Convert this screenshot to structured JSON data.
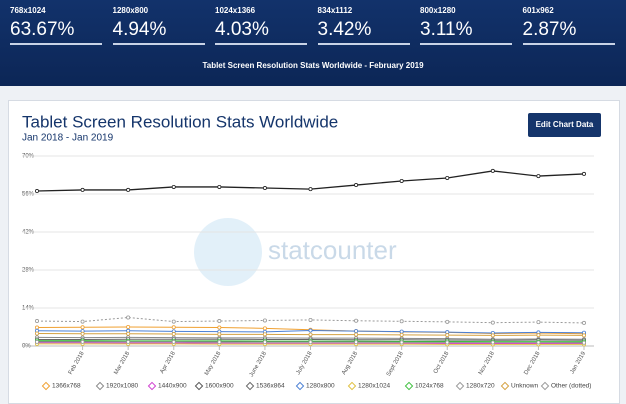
{
  "header": {
    "stats": [
      {
        "label": "768x1024",
        "value": "63.67%"
      },
      {
        "label": "1280x800",
        "value": "4.94%"
      },
      {
        "label": "1024x1366",
        "value": "4.03%"
      },
      {
        "label": "834x1112",
        "value": "3.42%"
      },
      {
        "label": "800x1280",
        "value": "3.11%"
      },
      {
        "label": "601x962",
        "value": "2.87%"
      }
    ],
    "subtitle": "Tablet Screen Resolution Stats Worldwide - February 2019"
  },
  "button": "Edit Chart Data",
  "watermark": "statcounter",
  "chart_data": {
    "type": "line",
    "title": "Tablet Screen Resolution Stats Worldwide",
    "subtitle": "Jan 2018 - Jan 2019",
    "categories": [
      null,
      "Feb 2018",
      "Mar 2018",
      "Apr 2018",
      "May 2018",
      "June 2018",
      "July 2018",
      "Aug 2018",
      "Sept 2018",
      "Oct 2018",
      "Nov 2018",
      "Dec 2018",
      "Jan 2019"
    ],
    "ylim": [
      0,
      70
    ],
    "yticks": [
      {
        "value": 0,
        "label": "0%"
      },
      {
        "value": 14,
        "label": "14%"
      },
      {
        "value": 28,
        "label": "28%"
      },
      {
        "value": 42,
        "label": "42%"
      },
      {
        "value": 56,
        "label": "56%"
      },
      {
        "value": 70,
        "label": "70%"
      }
    ],
    "grid": true,
    "legend": "bottom",
    "series": [
      {
        "color": "#222222",
        "values": [
          57.1,
          57.5,
          57.5,
          58.6,
          58.6,
          58.2,
          57.8,
          59.3,
          60.8,
          61.9,
          64.5,
          62.6,
          63.4
        ]
      },
      {
        "name": "1366x768",
        "color": "#f0a030",
        "values": [
          6.8,
          6.9,
          7.0,
          6.9,
          6.8,
          6.5,
          6.0,
          5.5,
          5.2,
          5.0,
          4.6,
          4.8,
          4.5
        ]
      },
      {
        "name": "1920x1080",
        "color": "#888888",
        "values": [
          3.2,
          3.1,
          3.2,
          3.1,
          3.0,
          3.0,
          2.9,
          2.9,
          2.8,
          2.7,
          2.5,
          2.6,
          2.5
        ]
      },
      {
        "name": "1440x900",
        "color": "#d040d0",
        "values": [
          1.2,
          1.2,
          1.1,
          1.1,
          1.1,
          1.0,
          1.0,
          1.0,
          1.0,
          0.9,
          0.9,
          0.9,
          0.9
        ]
      },
      {
        "name": "1600x900",
        "color": "#555555",
        "values": [
          1.8,
          1.8,
          1.7,
          1.7,
          1.7,
          1.6,
          1.6,
          1.6,
          1.5,
          1.5,
          1.4,
          1.4,
          1.4
        ]
      },
      {
        "name": "1536x864",
        "color": "#666666",
        "values": [
          2.4,
          2.4,
          2.5,
          2.5,
          2.5,
          2.4,
          2.4,
          2.3,
          2.3,
          2.2,
          2.1,
          2.2,
          2.1
        ]
      },
      {
        "name": "1280x800",
        "color": "#4a7fd4",
        "values": [
          5.6,
          5.5,
          5.6,
          5.4,
          5.3,
          5.2,
          5.7,
          5.5,
          5.3,
          5.1,
          4.8,
          5.0,
          4.9
        ]
      },
      {
        "name": "1280x1024",
        "color": "#e0c040",
        "values": [
          0.8,
          0.8,
          0.8,
          0.8,
          0.7,
          0.7,
          0.7,
          0.7,
          0.7,
          0.6,
          0.6,
          0.6,
          0.6
        ]
      },
      {
        "name": "1024x768",
        "color": "#40c040",
        "values": [
          2.0,
          2.0,
          1.9,
          1.9,
          1.9,
          1.8,
          1.8,
          1.8,
          1.7,
          1.7,
          1.6,
          1.6,
          1.6
        ]
      },
      {
        "name": "1280x720",
        "color": "#999999",
        "values": [
          1.5,
          1.5,
          1.5,
          1.5,
          1.4,
          1.4,
          1.4,
          1.4,
          1.3,
          1.3,
          1.3,
          1.3,
          1.2
        ]
      },
      {
        "name": "Unknown",
        "color": "#d4a040",
        "values": [
          4.6,
          4.5,
          4.5,
          4.4,
          4.3,
          4.3,
          4.2,
          4.2,
          4.1,
          4.0,
          3.9,
          4.0,
          3.9
        ]
      },
      {
        "name": "Other (dotted)",
        "color": "#999999",
        "dotted": true,
        "values": [
          9.2,
          9.0,
          10.5,
          9.0,
          9.2,
          9.4,
          9.6,
          9.3,
          9.1,
          8.9,
          8.6,
          8.8,
          8.5
        ]
      }
    ]
  }
}
